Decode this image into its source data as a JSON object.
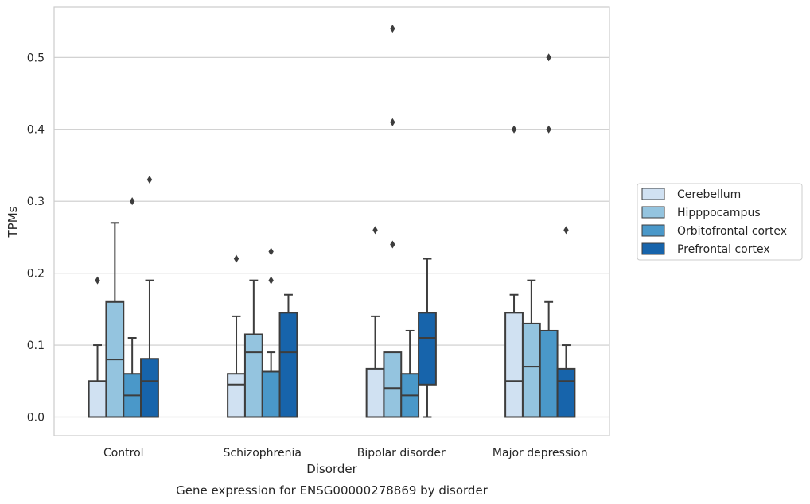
{
  "chart_data": {
    "type": "box",
    "title": "Gene expression for ENSG00000278869 by disorder",
    "xlabel": "Disorder",
    "ylabel": "TPMs",
    "ylim": [
      -0.026,
      0.57
    ],
    "yticks": [
      0.0,
      0.1,
      0.2,
      0.3,
      0.4,
      0.5
    ],
    "ytick_labels": [
      "0.0",
      "0.1",
      "0.2",
      "0.3",
      "0.4",
      "0.5"
    ],
    "grid": "horizontal",
    "legend_position": "right",
    "categories": [
      "Control",
      "Schizophrenia",
      "Bipolar disorder",
      "Major depression"
    ],
    "series": [
      {
        "name": "Cerebellum",
        "color": "#d0e1f2",
        "boxes": [
          {
            "whisker_low": 0.0,
            "q1": 0.0,
            "median": 0.0,
            "q3": 0.05,
            "whisker_high": 0.1,
            "outliers": [
              0.19
            ]
          },
          {
            "whisker_low": 0.0,
            "q1": 0.0,
            "median": 0.045,
            "q3": 0.06,
            "whisker_high": 0.14,
            "outliers": [
              0.22
            ]
          },
          {
            "whisker_low": 0.0,
            "q1": 0.0,
            "median": 0.0,
            "q3": 0.067,
            "whisker_high": 0.14,
            "outliers": [
              0.26
            ]
          },
          {
            "whisker_low": 0.0,
            "q1": 0.0,
            "median": 0.05,
            "q3": 0.145,
            "whisker_high": 0.17,
            "outliers": [
              0.4
            ]
          }
        ]
      },
      {
        "name": "Hipppocampus",
        "color": "#94c4df",
        "boxes": [
          {
            "whisker_low": 0.0,
            "q1": 0.0,
            "median": 0.08,
            "q3": 0.16,
            "whisker_high": 0.27,
            "outliers": []
          },
          {
            "whisker_low": 0.0,
            "q1": 0.0,
            "median": 0.09,
            "q3": 0.115,
            "whisker_high": 0.19,
            "outliers": []
          },
          {
            "whisker_low": 0.0,
            "q1": 0.0,
            "median": 0.04,
            "q3": 0.09,
            "whisker_high": 0.09,
            "outliers": [
              0.24,
              0.41,
              0.54
            ]
          },
          {
            "whisker_low": 0.0,
            "q1": 0.0,
            "median": 0.07,
            "q3": 0.13,
            "whisker_high": 0.19,
            "outliers": []
          }
        ]
      },
      {
        "name": "Orbitofrontal cortex",
        "color": "#4a98c9",
        "boxes": [
          {
            "whisker_low": 0.0,
            "q1": 0.0,
            "median": 0.03,
            "q3": 0.06,
            "whisker_high": 0.11,
            "outliers": [
              0.3
            ]
          },
          {
            "whisker_low": 0.0,
            "q1": 0.0,
            "median": 0.0,
            "q3": 0.063,
            "whisker_high": 0.09,
            "outliers": [
              0.19,
              0.23
            ]
          },
          {
            "whisker_low": 0.0,
            "q1": 0.0,
            "median": 0.03,
            "q3": 0.06,
            "whisker_high": 0.12,
            "outliers": []
          },
          {
            "whisker_low": 0.0,
            "q1": 0.0,
            "median": 0.0,
            "q3": 0.12,
            "whisker_high": 0.16,
            "outliers": [
              0.4,
              0.5
            ]
          }
        ]
      },
      {
        "name": "Prefrontal cortex",
        "color": "#1764ab",
        "boxes": [
          {
            "whisker_low": 0.0,
            "q1": 0.0,
            "median": 0.05,
            "q3": 0.081,
            "whisker_high": 0.19,
            "outliers": [
              0.33
            ]
          },
          {
            "whisker_low": 0.0,
            "q1": 0.0,
            "median": 0.09,
            "q3": 0.145,
            "whisker_high": 0.17,
            "outliers": []
          },
          {
            "whisker_low": 0.0,
            "q1": 0.045,
            "median": 0.11,
            "q3": 0.145,
            "whisker_high": 0.22,
            "outliers": []
          },
          {
            "whisker_low": 0.0,
            "q1": 0.0,
            "median": 0.05,
            "q3": 0.067,
            "whisker_high": 0.1,
            "outliers": [
              0.26
            ]
          }
        ]
      }
    ]
  }
}
